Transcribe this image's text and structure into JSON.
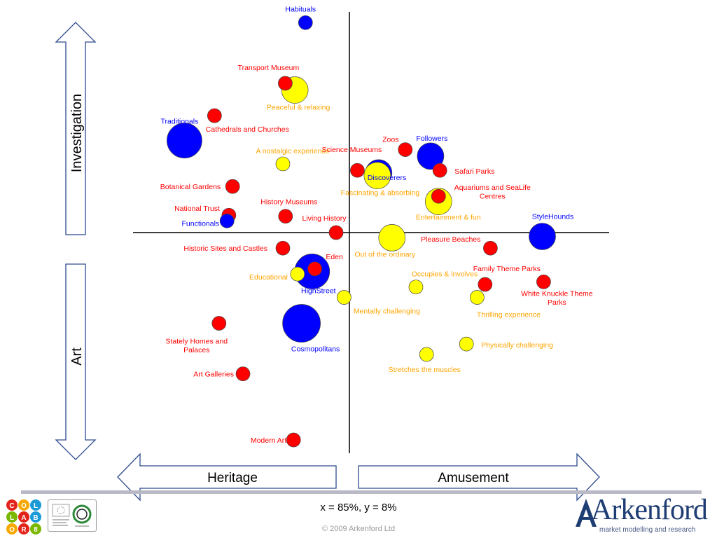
{
  "chart_data": {
    "type": "scatter",
    "title": "",
    "xlabel_left": "Heritage",
    "xlabel_right": "Amusement",
    "ylabel_top": "Investigation",
    "ylabel_bottom": "Art",
    "x_range": [
      -10,
      10
    ],
    "y_range": [
      -10,
      10
    ],
    "axis_lines": true,
    "series": [
      {
        "group": "Attractions",
        "color": "#ff0000",
        "points": [
          {
            "label": "Transport Museum",
            "x": -2.41,
            "y": 5.76,
            "size": "small"
          },
          {
            "label": "Cathedrals and Churches",
            "x": -5.07,
            "y": 4.51,
            "size": "small"
          },
          {
            "label": "Botanical Gardens",
            "x": -4.39,
            "y": 1.78,
            "size": "small"
          },
          {
            "label": "National Trust",
            "x": -4.53,
            "y": 0.67,
            "size": "small"
          },
          {
            "label": "History Museums",
            "x": -2.4,
            "y": 0.63,
            "size": "small"
          },
          {
            "label": "Living History",
            "x": -0.5,
            "y": 0.0,
            "size": "small"
          },
          {
            "label": "Historic Sites and Castles",
            "x": -2.5,
            "y": -0.6,
            "size": "small"
          },
          {
            "label": "Eden",
            "x": -1.3,
            "y": -1.4,
            "size": "small"
          },
          {
            "label": "Stately Homes and Palaces",
            "x": -4.9,
            "y": -3.5,
            "size": "small"
          },
          {
            "label": "Art Galleries",
            "x": -4.0,
            "y": -5.45,
            "size": "small"
          },
          {
            "label": "Modern Art",
            "x": -2.1,
            "y": -8.0,
            "size": "small"
          },
          {
            "label": "Science Museums",
            "x": 0.3,
            "y": 2.4,
            "size": "small"
          },
          {
            "label": "Zoos",
            "x": 2.1,
            "y": 3.2,
            "size": "small"
          },
          {
            "label": "Safari Parks",
            "x": 3.4,
            "y": 2.4,
            "size": "small"
          },
          {
            "label": "Aquariums and SeaLife Centres",
            "x": 3.35,
            "y": 1.4,
            "size": "small"
          },
          {
            "label": "Pleasure Beaches",
            "x": 5.3,
            "y": -0.6,
            "size": "small"
          },
          {
            "label": "Family Theme Parks",
            "x": 5.1,
            "y": -2.0,
            "size": "small"
          },
          {
            "label": "White Knuckle Theme Parks",
            "x": 7.3,
            "y": -1.9,
            "size": "small"
          }
        ]
      },
      {
        "group": "Segments",
        "color": "#0000ff",
        "points": [
          {
            "label": "Habituals",
            "x": -1.65,
            "y": 8.1,
            "size": "small"
          },
          {
            "label": "Traditionals",
            "x": -6.2,
            "y": 3.55,
            "size": "large"
          },
          {
            "label": "Followers",
            "x": 3.05,
            "y": 2.95,
            "size": "medium"
          },
          {
            "label": "Discoverers",
            "x": 1.1,
            "y": 2.3,
            "size": "medium"
          },
          {
            "label": "Functionals",
            "x": -4.6,
            "y": 0.45,
            "size": "small"
          },
          {
            "label": "StyleHounds",
            "x": 7.25,
            "y": -0.15,
            "size": "medium"
          },
          {
            "label": "HighStreet",
            "x": -1.4,
            "y": -1.5,
            "size": "large"
          },
          {
            "label": "Cosmopolitans",
            "x": -1.8,
            "y": -3.5,
            "size": "xlarge"
          }
        ]
      },
      {
        "group": "Motivations",
        "color": "#ffff00",
        "points": [
          {
            "label": "Peaceful & relaxing",
            "x": -2.05,
            "y": 5.5,
            "size": "medium"
          },
          {
            "label": "A nostalgic experience",
            "x": -2.5,
            "y": 2.65,
            "size": "small"
          },
          {
            "label": "Fascinating & absorbing",
            "x": 1.05,
            "y": 2.2,
            "size": "medium"
          },
          {
            "label": "Entertainment & fun",
            "x": 3.35,
            "y": 1.2,
            "size": "medium"
          },
          {
            "label": "Out of the ordinary",
            "x": 1.6,
            "y": -0.2,
            "size": "medium"
          },
          {
            "label": "Educational",
            "x": -1.95,
            "y": -1.6,
            "size": "small"
          },
          {
            "label": "Occupies & involves",
            "x": 2.5,
            "y": -2.1,
            "size": "small"
          },
          {
            "label": "Thrilling experience",
            "x": 4.8,
            "y": -2.5,
            "size": "small"
          },
          {
            "label": "Mentally challenging",
            "x": -0.2,
            "y": -2.5,
            "size": "small"
          },
          {
            "label": "Physically challenging",
            "x": 4.4,
            "y": -4.3,
            "size": "small"
          },
          {
            "label": "Stretches the muscles",
            "x": 2.9,
            "y": -4.7,
            "size": "small"
          }
        ]
      }
    ]
  },
  "footer": {
    "stat": "x = 85%, y = 8%",
    "copyright": "© 2009 Arkenford Ltd"
  },
  "logos": {
    "collab_letters": [
      "C",
      "O",
      "L",
      "L",
      "A",
      "B",
      "O",
      "R",
      "8"
    ],
    "arkenford_name": "Arkenford",
    "arkenford_tagline": "market modelling and research"
  }
}
